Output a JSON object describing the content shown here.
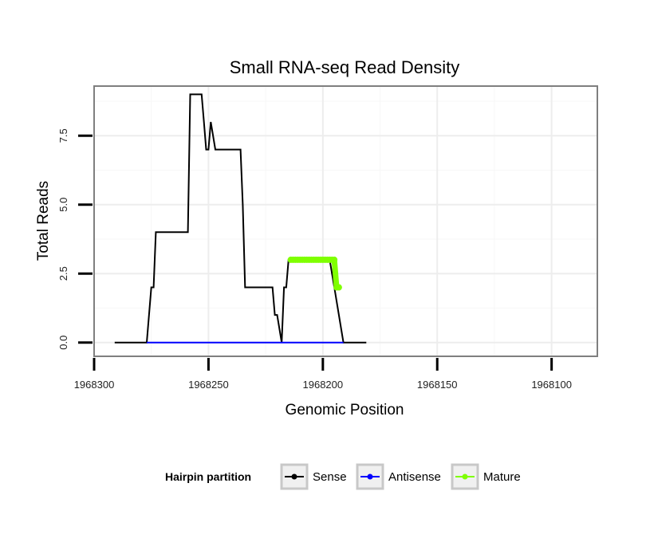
{
  "chart_data": {
    "type": "line",
    "title": "Small RNA-seq Read Density",
    "xlabel": "Genomic Position",
    "ylabel": "Total Reads",
    "x_reversed": true,
    "xlim": [
      1968300,
      1968080
    ],
    "ylim": [
      -0.5,
      9.3
    ],
    "x_ticks": [
      1968300,
      1968250,
      1968200,
      1968150,
      1968100
    ],
    "x_tick_labels": [
      "1968300",
      "1968250",
      "1968200",
      "1968150",
      "1968100"
    ],
    "y_ticks": [
      0,
      2.5,
      5,
      7.5
    ],
    "y_tick_labels": [
      "0.0",
      "2.5",
      "5.0",
      "7.5"
    ],
    "grid": true,
    "legend": {
      "title": "Hairpin partition",
      "position": "bottom",
      "entries": [
        {
          "label": "Sense",
          "color": "#000000"
        },
        {
          "label": "Antisense",
          "color": "#0000ff"
        },
        {
          "label": "Mature",
          "color": "#7fff00"
        }
      ]
    },
    "series": [
      {
        "name": "Sense",
        "color": "#000000",
        "x": [
          1968291,
          1968277,
          1968275,
          1968274,
          1968273,
          1968259,
          1968258,
          1968257,
          1968253,
          1968252,
          1968251,
          1968250,
          1968249,
          1968247,
          1968246,
          1968236,
          1968235,
          1968234,
          1968222,
          1968221,
          1968220,
          1968218,
          1968217,
          1968216,
          1968215,
          1968213,
          1968197,
          1968195,
          1968191,
          1968190,
          1968181
        ],
        "y": [
          0,
          0,
          2,
          2,
          4,
          4,
          9,
          9,
          9,
          8,
          7,
          7,
          8,
          7,
          7,
          7,
          5,
          2,
          2,
          1,
          1,
          0,
          2,
          2,
          3,
          3,
          3,
          2,
          0,
          0,
          0
        ]
      },
      {
        "name": "Antisense",
        "color": "#0000ff",
        "x": [
          1968277,
          1968191
        ],
        "y": [
          0,
          0
        ]
      },
      {
        "name": "Mature",
        "color": "#7fff00",
        "x": [
          1968214,
          1968213,
          1968212,
          1968211,
          1968210,
          1968209,
          1968208,
          1968207,
          1968206,
          1968205,
          1968204,
          1968203,
          1968202,
          1968201,
          1968200,
          1968199,
          1968198,
          1968197,
          1968196,
          1968195,
          1968194,
          1968193
        ],
        "y": [
          3,
          3,
          3,
          3,
          3,
          3,
          3,
          3,
          3,
          3,
          3,
          3,
          3,
          3,
          3,
          3,
          3,
          3,
          3,
          3,
          2,
          2
        ]
      }
    ]
  }
}
